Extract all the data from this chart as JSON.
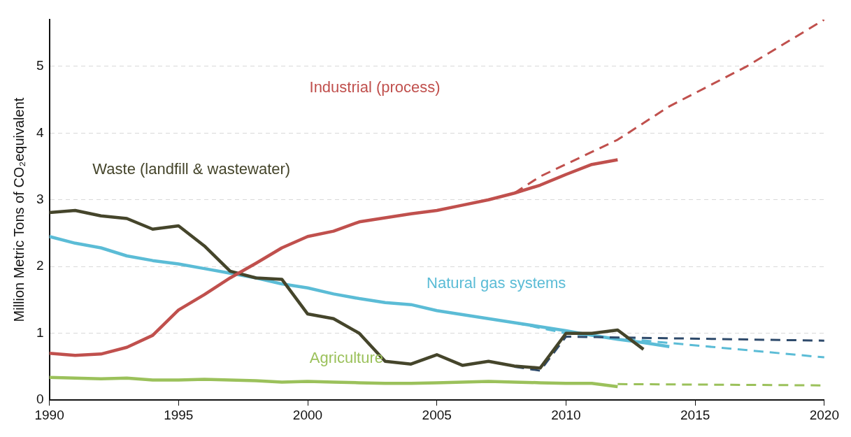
{
  "chart_data": {
    "type": "line",
    "ylabel": "Million Metric Tons of CO₂equivalent",
    "xlim": [
      1990,
      2020
    ],
    "xticks": [
      1990,
      1995,
      2000,
      2005,
      2010,
      2015,
      2020
    ],
    "ylim": [
      0,
      5.7
    ],
    "yticks": [
      0,
      1,
      2,
      3,
      4,
      5
    ],
    "grid": "y",
    "legend": false,
    "marker": "none",
    "series": [
      {
        "name": "Industrial (process)",
        "color": "#c0504d",
        "line_style": "solid",
        "x": [
          1990,
          1991,
          1992,
          1993,
          1994,
          1995,
          1996,
          1997,
          1998,
          1999,
          2000,
          2001,
          2002,
          2003,
          2004,
          2005,
          2006,
          2007,
          2008,
          2009,
          2010,
          2011,
          2012
        ],
        "values": [
          0.7,
          0.67,
          0.69,
          0.79,
          0.97,
          1.35,
          1.58,
          1.83,
          2.05,
          2.28,
          2.45,
          2.53,
          2.67,
          2.73,
          2.79,
          2.84,
          2.92,
          3.0,
          3.1,
          3.22,
          3.38,
          3.53,
          3.6
        ]
      },
      {
        "color": "#c0504d",
        "line_style": "dashed",
        "x": [
          2008,
          2009,
          2012,
          2014,
          2017,
          2020
        ],
        "values": [
          3.1,
          3.35,
          3.9,
          4.4,
          5.0,
          5.7
        ]
      },
      {
        "name": "Waste (landfill & wastewater)",
        "color": "#45452b",
        "line_style": "solid",
        "x": [
          1990,
          1991,
          1992,
          1993,
          1994,
          1995,
          1996,
          1997,
          1998,
          1999,
          2000,
          2001,
          2002,
          2003,
          2004,
          2005,
          2006,
          2007,
          2008,
          2009,
          2010,
          2011,
          2012,
          2013
        ],
        "values": [
          2.81,
          2.84,
          2.76,
          2.72,
          2.56,
          2.61,
          2.31,
          1.93,
          1.83,
          1.81,
          1.29,
          1.22,
          1.0,
          0.58,
          0.54,
          0.68,
          0.52,
          0.58,
          0.51,
          0.48,
          1.0,
          1.0,
          1.05,
          0.76
        ]
      },
      {
        "color": "#2e4a6b",
        "line_style": "dashed",
        "x": [
          2008,
          2009,
          2010,
          2020
        ],
        "values": [
          0.5,
          0.44,
          0.95,
          0.89
        ]
      },
      {
        "name": "Natural gas systems",
        "color": "#5bbcd6",
        "line_style": "solid",
        "x": [
          1990,
          1991,
          1992,
          1993,
          1994,
          1995,
          1996,
          1997,
          1998,
          1999,
          2000,
          2001,
          2002,
          2003,
          2004,
          2005,
          2006,
          2007,
          2008,
          2009,
          2010,
          2011,
          2012,
          2013,
          2014
        ],
        "values": [
          2.45,
          2.35,
          2.28,
          2.16,
          2.09,
          2.04,
          1.97,
          1.9,
          1.83,
          1.74,
          1.68,
          1.59,
          1.52,
          1.46,
          1.43,
          1.34,
          1.28,
          1.22,
          1.16,
          1.1,
          1.04,
          0.97,
          0.91,
          0.86,
          0.8
        ]
      },
      {
        "color": "#5bbcd6",
        "line_style": "dashed",
        "x": [
          2008,
          2010,
          2020
        ],
        "values": [
          1.16,
          1.0,
          0.64
        ]
      },
      {
        "name": "Agriculture",
        "color": "#9bc15b",
        "line_style": "solid",
        "x": [
          1990,
          1991,
          1992,
          1993,
          1994,
          1995,
          1996,
          1997,
          1998,
          1999,
          2000,
          2001,
          2002,
          2003,
          2004,
          2005,
          2006,
          2007,
          2008,
          2009,
          2010,
          2011,
          2012
        ],
        "values": [
          0.34,
          0.33,
          0.32,
          0.33,
          0.3,
          0.3,
          0.31,
          0.3,
          0.29,
          0.27,
          0.28,
          0.27,
          0.26,
          0.25,
          0.25,
          0.26,
          0.27,
          0.28,
          0.27,
          0.26,
          0.25,
          0.25,
          0.2
        ]
      },
      {
        "color": "#9bc15b",
        "line_style": "dashed",
        "x": [
          2012,
          2020
        ],
        "values": [
          0.24,
          0.22
        ]
      }
    ]
  }
}
